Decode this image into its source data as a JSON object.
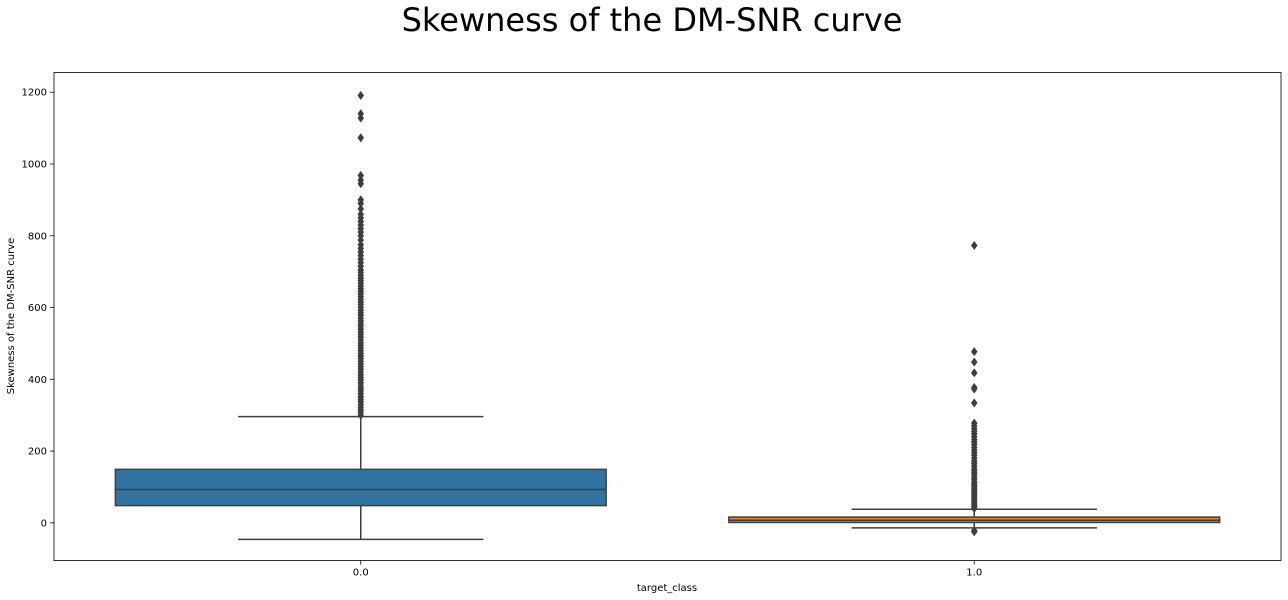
{
  "chart_data": {
    "type": "box",
    "title": "Skewness of the DM-SNR curve",
    "xlabel": "target_class",
    "ylabel": "Skewness of the DM-SNR curve",
    "ylim": [
      -105,
      1255
    ],
    "yticks": [
      0,
      200,
      400,
      600,
      800,
      1000,
      1200
    ],
    "grid": false,
    "categories": [
      "0.0",
      "1.0"
    ],
    "boxes": [
      {
        "category": "0.0",
        "color": "#3274a1",
        "whisker_low": -46,
        "q1": 48,
        "median": 93,
        "q3": 149,
        "whisker_high": 296,
        "outliers": [
          1191,
          1140,
          1128,
          1073,
          968,
          955,
          945,
          900,
          890,
          875,
          860,
          850,
          840,
          830,
          820,
          810,
          800,
          788,
          775,
          765,
          755,
          745,
          735,
          725,
          715,
          705,
          698,
          690,
          682,
          675,
          668,
          660,
          652,
          645,
          638,
          630,
          622,
          615,
          608,
          600,
          592,
          585,
          578,
          570,
          562,
          555,
          548,
          540,
          532,
          525,
          518,
          510,
          502,
          495,
          488,
          480,
          472,
          465,
          458,
          450,
          442,
          435,
          428,
          420,
          412,
          405,
          398,
          390,
          382,
          375,
          368,
          360,
          352,
          345,
          338,
          330,
          322,
          315,
          308,
          300
        ]
      },
      {
        "category": "1.0",
        "color": "#e1812c",
        "whisker_low": -14,
        "q1": 1,
        "median": 7,
        "q3": 16,
        "whisker_high": 38,
        "outliers": [
          773,
          477,
          448,
          418,
          377,
          373,
          334,
          278,
          270,
          262,
          255,
          248,
          240,
          232,
          225,
          218,
          210,
          202,
          195,
          188,
          180,
          172,
          165,
          158,
          150,
          145,
          140,
          135,
          128,
          122,
          115,
          110,
          105,
          100,
          95,
          90,
          85,
          80,
          75,
          70,
          65,
          60,
          55,
          50,
          45,
          40,
          -22,
          -25
        ]
      }
    ]
  }
}
